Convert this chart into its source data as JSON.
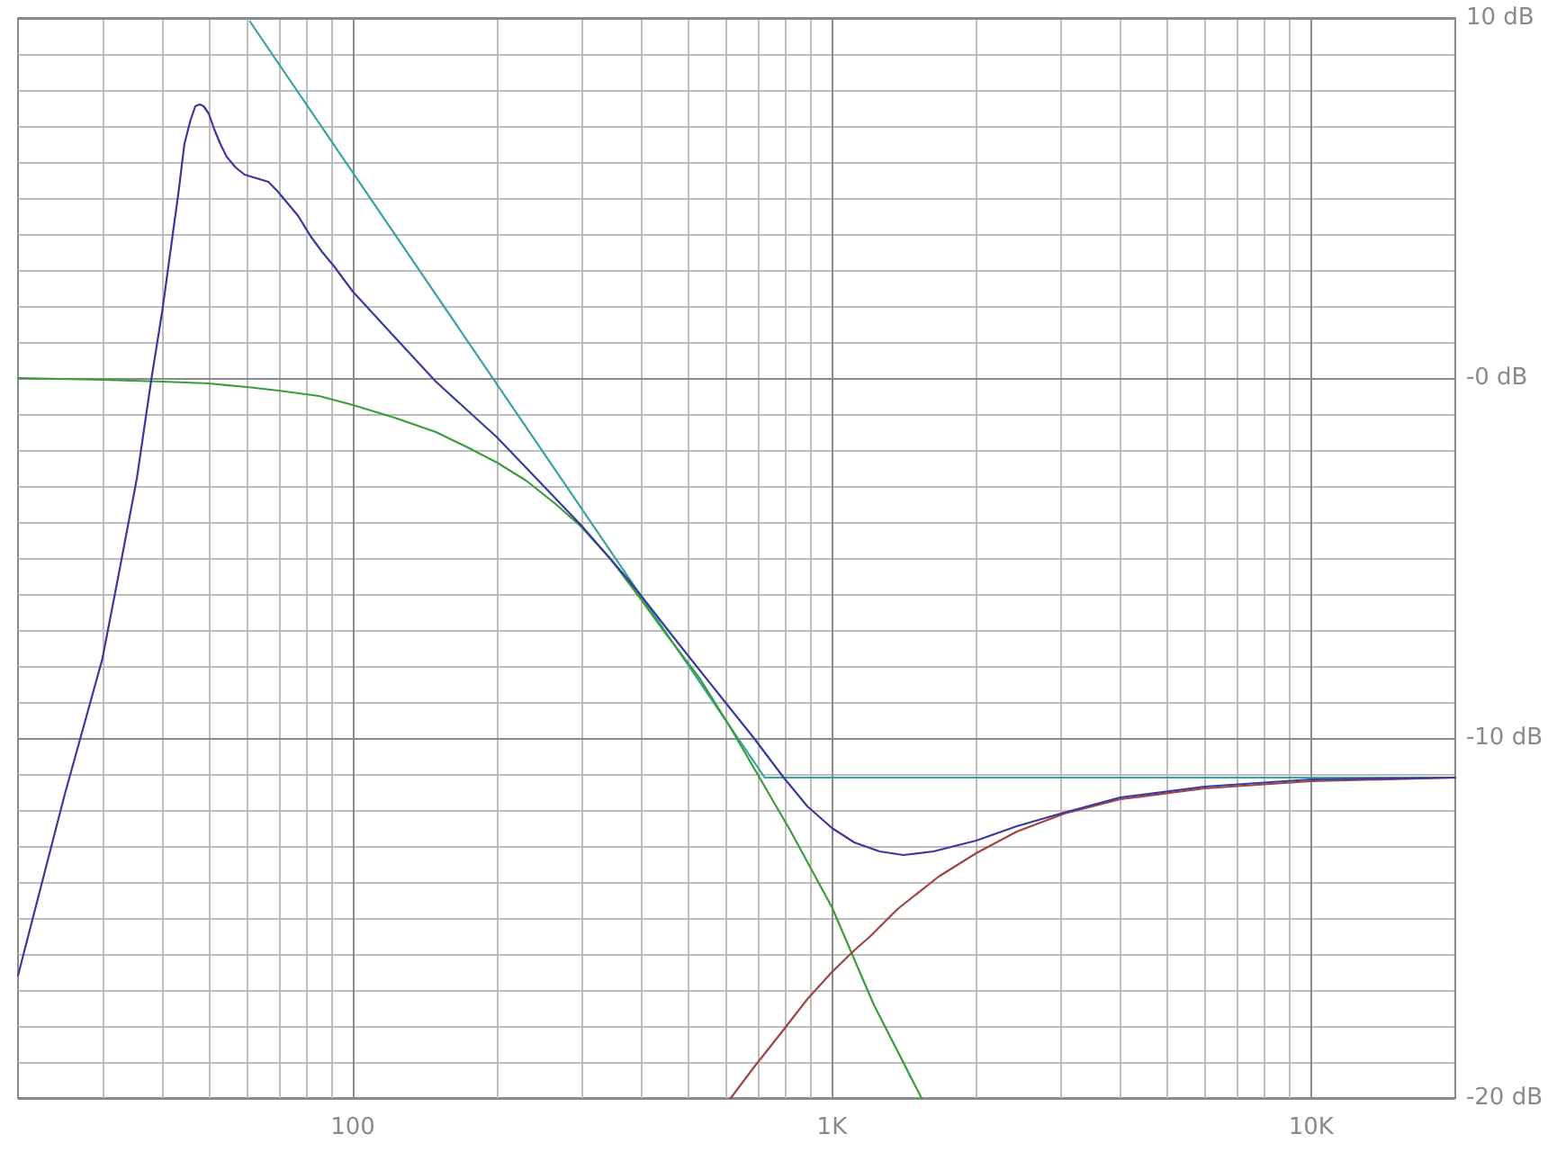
{
  "chart_data": {
    "type": "line",
    "log": "x",
    "grid": true,
    "xlim": [
      20,
      20000
    ],
    "ylim": [
      -20,
      10
    ],
    "xticks": [
      {
        "value": 30,
        "label": null
      },
      {
        "value": 40,
        "label": null
      },
      {
        "value": 50,
        "label": null
      },
      {
        "value": 60,
        "label": null
      },
      {
        "value": 70,
        "label": null
      },
      {
        "value": 80,
        "label": null
      },
      {
        "value": 90,
        "label": null
      },
      {
        "value": 100,
        "label": "100"
      },
      {
        "value": 200,
        "label": null
      },
      {
        "value": 300,
        "label": null
      },
      {
        "value": 400,
        "label": null
      },
      {
        "value": 500,
        "label": null
      },
      {
        "value": 600,
        "label": null
      },
      {
        "value": 700,
        "label": null
      },
      {
        "value": 800,
        "label": null
      },
      {
        "value": 900,
        "label": null
      },
      {
        "value": 1000,
        "label": "1K"
      },
      {
        "value": 2000,
        "label": null
      },
      {
        "value": 3000,
        "label": null
      },
      {
        "value": 4000,
        "label": null
      },
      {
        "value": 5000,
        "label": null
      },
      {
        "value": 6000,
        "label": null
      },
      {
        "value": 7000,
        "label": null
      },
      {
        "value": 8000,
        "label": null
      },
      {
        "value": 9000,
        "label": null
      },
      {
        "value": 10000,
        "label": "10K"
      }
    ],
    "yticks": [
      {
        "value": 10,
        "label": "10 dB"
      },
      {
        "value": 9,
        "label": null
      },
      {
        "value": 8,
        "label": null
      },
      {
        "value": 7,
        "label": null
      },
      {
        "value": 6,
        "label": null
      },
      {
        "value": 5,
        "label": null
      },
      {
        "value": 4,
        "label": null
      },
      {
        "value": 3,
        "label": null
      },
      {
        "value": 2,
        "label": null
      },
      {
        "value": 1,
        "label": null
      },
      {
        "value": 0,
        "label": "-0 dB"
      },
      {
        "value": -1,
        "label": null
      },
      {
        "value": -2,
        "label": null
      },
      {
        "value": -3,
        "label": null
      },
      {
        "value": -4,
        "label": null
      },
      {
        "value": -5,
        "label": null
      },
      {
        "value": -6,
        "label": null
      },
      {
        "value": -7,
        "label": null
      },
      {
        "value": -8,
        "label": null
      },
      {
        "value": -9,
        "label": null
      },
      {
        "value": -10,
        "label": "-10 dB"
      },
      {
        "value": -11,
        "label": null
      },
      {
        "value": -12,
        "label": null
      },
      {
        "value": -13,
        "label": null
      },
      {
        "value": -14,
        "label": null
      },
      {
        "value": -15,
        "label": null
      },
      {
        "value": -16,
        "label": null
      },
      {
        "value": -17,
        "label": null
      },
      {
        "value": -18,
        "label": null
      },
      {
        "value": -19,
        "label": null
      },
      {
        "value": -20,
        "label": "-20 dB"
      }
    ],
    "series": [
      {
        "color": "#36a2a2",
        "x": [
          61,
          724,
          20000
        ],
        "values": [
          9.9,
          -11.1,
          -11.1
        ]
      },
      {
        "color": "#3c9c3c",
        "x": [
          20,
          30,
          40,
          50,
          60,
          70,
          85,
          100,
          122,
          149,
          172,
          200,
          230,
          265,
          298,
          344,
          397,
          450,
          530,
          610,
          706,
          817,
          1000,
          1222,
          1538
        ],
        "values": [
          0,
          -0.05,
          -0.1,
          -0.15,
          -0.25,
          -0.35,
          -0.5,
          -0.75,
          -1.1,
          -1.5,
          -1.9,
          -2.35,
          -2.85,
          -3.5,
          -4.1,
          -5.0,
          -6.1,
          -7.1,
          -8.35,
          -9.65,
          -11.1,
          -12.55,
          -14.7,
          -17.4,
          -20
        ]
      },
      {
        "color": "#a04444",
        "x": [
          615,
          687,
          793,
          889,
          1000,
          1113,
          1204,
          1371,
          1670,
          2000,
          2432,
          3055,
          4000,
          6000,
          10000,
          20000
        ],
        "values": [
          -20,
          -19.15,
          -18.1,
          -17.25,
          -16.5,
          -15.9,
          -15.5,
          -14.75,
          -13.85,
          -13.2,
          -12.6,
          -12.1,
          -11.7,
          -11.4,
          -11.2,
          -11.1
        ]
      },
      {
        "color": "#3a3a9e",
        "x": [
          20,
          25,
          27,
          30,
          32.4,
          35.4,
          38,
          40,
          43.3,
          44.5,
          45.8,
          46.9,
          47.9,
          48.8,
          50,
          51.4,
          52.9,
          54.5,
          56.9,
          59.4,
          62.9,
          66.6,
          69.5,
          72.6,
          76.9,
          81.5,
          86.3,
          91.4,
          100,
          122,
          149,
          200,
          244,
          300,
          370,
          397,
          480,
          578,
          687,
          793,
          889,
          1000,
          1113,
          1257,
          1409,
          1629,
          2000,
          2432,
          3000,
          4000,
          6000,
          10000,
          20000
        ],
        "values": [
          -16.6,
          -11.6,
          -10.0,
          -7.8,
          -5.5,
          -2.8,
          0,
          1.85,
          5.2,
          6.5,
          7.15,
          7.55,
          7.6,
          7.55,
          7.35,
          6.9,
          6.5,
          6.15,
          5.85,
          5.65,
          5.55,
          5.45,
          5.2,
          4.9,
          4.5,
          3.95,
          3.5,
          3.1,
          2.4,
          1.15,
          -0.1,
          -1.65,
          -2.85,
          -4.1,
          -5.5,
          -6.0,
          -7.4,
          -8.75,
          -10.0,
          -11.1,
          -11.9,
          -12.5,
          -12.9,
          -13.15,
          -13.25,
          -13.15,
          -12.85,
          -12.45,
          -12.1,
          -11.65,
          -11.35,
          -11.15,
          -11.1
        ]
      }
    ]
  }
}
